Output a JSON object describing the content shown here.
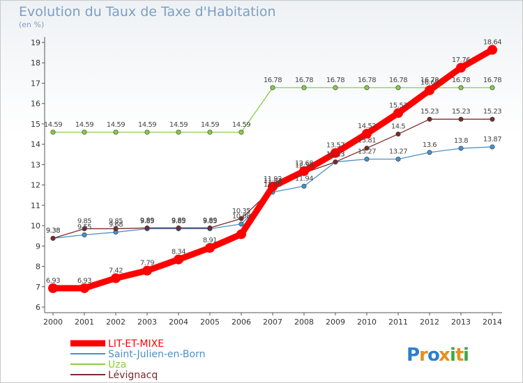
{
  "chart_data": {
    "type": "line",
    "title": "Evolution du Taux de Taxe d'Habitation",
    "subtitle": "(en %)",
    "x": [
      "2000",
      "2001",
      "2002",
      "2003",
      "2004",
      "2005",
      "2006",
      "2007",
      "2008",
      "2009",
      "2010",
      "2011",
      "2012",
      "2013",
      "2014"
    ],
    "ylim": [
      6,
      19
    ],
    "yticks": [
      6,
      7,
      8,
      9,
      10,
      11,
      12,
      13,
      14,
      15,
      16,
      17,
      18,
      19
    ],
    "grid": false,
    "legend_position": "bottom-left",
    "series": [
      {
        "name": "LIT-ET-MIXE",
        "color": "#ff0000",
        "values": [
          6.93,
          6.93,
          7.42,
          7.79,
          8.34,
          8.91,
          9.58,
          11.92,
          12.68,
          13.57,
          14.52,
          15.53,
          16.65,
          17.76,
          18.64
        ],
        "labels": [
          "6.93",
          "6.93",
          "7.42",
          "7.79",
          "8.34",
          "8.91",
          "",
          "11.92",
          "12.68",
          "13.57",
          "14.52",
          "15.53",
          "16.65",
          "17.76",
          "18.64"
        ]
      },
      {
        "name": "Saint-Julien-en-Born",
        "color": "#4a90c8",
        "values": [
          9.38,
          9.55,
          9.68,
          9.85,
          9.85,
          9.85,
          10.08,
          11.65,
          11.94,
          13.13,
          13.27,
          13.27,
          13.6,
          13.8,
          13.87
        ],
        "labels": [
          "9.38",
          "9.55",
          "9.68",
          "9.85",
          "9.85",
          "9.85",
          "10.08",
          "11.65",
          "11.94",
          "13.13",
          "13.27",
          "13.27",
          "13.6",
          "13.8",
          "13.87"
        ]
      },
      {
        "name": "Uza",
        "color": "#88cc44",
        "values": [
          14.59,
          14.59,
          14.59,
          14.59,
          14.59,
          14.59,
          14.59,
          16.78,
          16.78,
          16.78,
          16.78,
          16.78,
          16.78,
          16.78,
          16.78
        ],
        "labels": [
          "14.59",
          "14.59",
          "14.59",
          "14.59",
          "14.59",
          "14.59",
          "14.59",
          "16.78",
          "16.78",
          "16.78",
          "16.78",
          "16.78",
          "16.78",
          "16.78",
          "16.78"
        ]
      },
      {
        "name": "Lévignacq",
        "color": "#7a2a2a",
        "values": [
          9.38,
          9.85,
          9.85,
          9.89,
          9.89,
          9.89,
          10.35,
          11.82,
          12.59,
          13.13,
          13.81,
          14.5,
          15.23,
          15.23,
          15.23
        ],
        "labels": [
          "9.38",
          "9.85",
          "9.85",
          "9.89",
          "9.89",
          "9.89",
          "10.35",
          "11.82",
          "12.59",
          "13.13",
          "13.81",
          "14.5",
          "15.23",
          "15.23",
          "15.23"
        ]
      }
    ]
  },
  "logo": {
    "text": "Proxiti",
    "letters": [
      "P",
      "r",
      "o",
      "x",
      "i",
      "t",
      "i"
    ],
    "colors": [
      "#2b7fd0",
      "#e8901c",
      "#2b7fd0",
      "#e8901c",
      "#3aa84a",
      "#e8901c",
      "#3aa84a"
    ]
  }
}
